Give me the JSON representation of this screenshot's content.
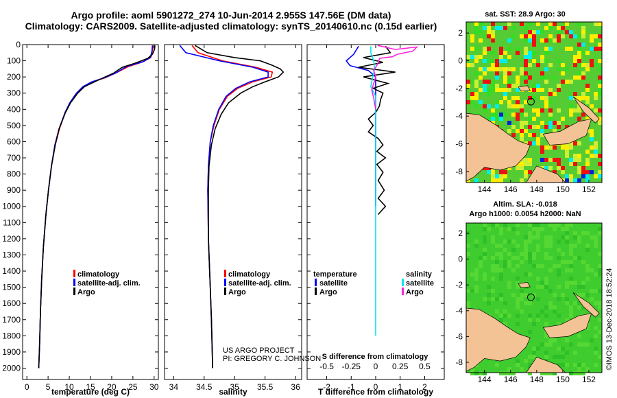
{
  "header": {
    "line1": "Argo profile: aoml 5901272_274 10-Jun-2014 2.955S 147.56E (DM data)",
    "line2": "Climatology: CARS2009. Satellite-adjusted climatology: synTS_20140610.nc (0.15d earlier)"
  },
  "credit": {
    "line1": "US ARGO PROJECT",
    "line2": "PI: GREGORY C. JOHNSON"
  },
  "imos_stamp": "©IMOS 13-Dec-2018 18:52:24",
  "colors": {
    "climatology": "#ff0000",
    "satellite": "#0000ff",
    "argo": "#000000",
    "sat_salinity": "#00e5ee",
    "argo_salinity": "#ff22dd",
    "land": "#f3c295"
  },
  "chart_data": [
    {
      "type": "line",
      "name": "temperature-profile",
      "xlabel": "temperature (deg C)",
      "xlim": [
        -1,
        31
      ],
      "xticks": [
        0,
        5,
        10,
        15,
        20,
        25,
        30
      ],
      "ylim": [
        2070,
        0
      ],
      "yticks": [
        0,
        100,
        200,
        300,
        400,
        500,
        600,
        700,
        800,
        900,
        1000,
        1100,
        1200,
        1300,
        1400,
        1500,
        1600,
        1700,
        1800,
        1900,
        2000
      ],
      "legend": [
        "climatology",
        "satellite-adj. clim.",
        "Argo"
      ],
      "series": [
        {
          "name": "climatology",
          "points": [
            [
              29.8,
              5
            ],
            [
              29.6,
              40
            ],
            [
              29.2,
              80
            ],
            [
              27,
              110
            ],
            [
              24,
              135
            ],
            [
              21,
              175
            ],
            [
              18.5,
              205
            ],
            [
              15.5,
              230
            ],
            [
              13.3,
              260
            ],
            [
              11.8,
              300
            ],
            [
              10.2,
              360
            ],
            [
              9,
              420
            ],
            [
              7.7,
              520
            ],
            [
              6.7,
              620
            ],
            [
              5.8,
              750
            ],
            [
              5.1,
              900
            ],
            [
              4.5,
              1050
            ],
            [
              3.9,
              1250
            ],
            [
              3.5,
              1450
            ],
            [
              3.2,
              1650
            ],
            [
              3,
              1850
            ],
            [
              2.8,
              2000
            ]
          ]
        },
        {
          "name": "satellite-adj. clim.",
          "points": [
            [
              29.6,
              5
            ],
            [
              29.5,
              40
            ],
            [
              29.1,
              80
            ],
            [
              27.5,
              105
            ],
            [
              23.5,
              135
            ],
            [
              21,
              175
            ],
            [
              18.3,
              205
            ],
            [
              15.3,
              230
            ],
            [
              13.2,
              260
            ],
            [
              11.7,
              300
            ],
            [
              10.1,
              360
            ],
            [
              9,
              420
            ],
            [
              7.6,
              520
            ],
            [
              6.6,
              620
            ],
            [
              5.8,
              750
            ],
            [
              5.1,
              900
            ],
            [
              4.5,
              1050
            ],
            [
              3.9,
              1250
            ],
            [
              3.5,
              1450
            ],
            [
              3.2,
              1650
            ],
            [
              3,
              1850
            ],
            [
              2.8,
              2000
            ]
          ]
        },
        {
          "name": "Argo",
          "points": [
            [
              30.2,
              5
            ],
            [
              30.1,
              30
            ],
            [
              29.6,
              60
            ],
            [
              28.5,
              85
            ],
            [
              25.5,
              115
            ],
            [
              22.5,
              140
            ],
            [
              20.5,
              175
            ],
            [
              18,
              205
            ],
            [
              16,
              230
            ],
            [
              13.6,
              260
            ],
            [
              12,
              300
            ],
            [
              10.3,
              360
            ],
            [
              9.1,
              420
            ],
            [
              7.6,
              520
            ],
            [
              6.7,
              620
            ],
            [
              5.8,
              750
            ],
            [
              5.1,
              900
            ],
            [
              4.5,
              1050
            ],
            [
              3.9,
              1250
            ],
            [
              3.5,
              1450
            ],
            [
              3.2,
              1650
            ],
            [
              3,
              1850
            ],
            [
              2.8,
              2000
            ]
          ]
        }
      ]
    },
    {
      "type": "line",
      "name": "salinity-profile",
      "xlabel": "salinity",
      "xlim": [
        33.85,
        36.1
      ],
      "xticks": [
        34,
        34.5,
        35,
        35.5,
        36
      ],
      "ylim": [
        2070,
        0
      ],
      "legend": [
        "climatology",
        "satellite-adj. clim.",
        "Argo"
      ],
      "series": [
        {
          "name": "climatology",
          "points": [
            [
              34.3,
              5
            ],
            [
              34.4,
              50
            ],
            [
              34.8,
              100
            ],
            [
              35.35,
              140
            ],
            [
              35.62,
              170
            ],
            [
              35.6,
              200
            ],
            [
              35.3,
              230
            ],
            [
              35.05,
              270
            ],
            [
              34.88,
              320
            ],
            [
              34.75,
              400
            ],
            [
              34.66,
              500
            ],
            [
              34.6,
              600
            ],
            [
              34.57,
              750
            ],
            [
              34.56,
              900
            ],
            [
              34.57,
              1200
            ],
            [
              34.6,
              1500
            ],
            [
              34.62,
              1700
            ],
            [
              34.64,
              2000
            ]
          ]
        },
        {
          "name": "satellite-adj. clim.",
          "points": [
            [
              34.1,
              5
            ],
            [
              34.2,
              50
            ],
            [
              34.75,
              100
            ],
            [
              35.3,
              140
            ],
            [
              35.55,
              170
            ],
            [
              35.55,
              200
            ],
            [
              35.25,
              230
            ],
            [
              35.02,
              270
            ],
            [
              34.86,
              320
            ],
            [
              34.74,
              400
            ],
            [
              34.65,
              500
            ],
            [
              34.6,
              600
            ],
            [
              34.57,
              750
            ],
            [
              34.56,
              900
            ],
            [
              34.57,
              1200
            ],
            [
              34.6,
              1500
            ],
            [
              34.62,
              1700
            ],
            [
              34.64,
              2000
            ]
          ]
        },
        {
          "name": "Argo",
          "points": [
            [
              34.35,
              5
            ],
            [
              34.55,
              50
            ],
            [
              35.0,
              80
            ],
            [
              35.42,
              100
            ],
            [
              35.6,
              125
            ],
            [
              35.75,
              150
            ],
            [
              35.8,
              170
            ],
            [
              35.72,
              200
            ],
            [
              35.5,
              230
            ],
            [
              35.3,
              260
            ],
            [
              35.1,
              300
            ],
            [
              34.9,
              360
            ],
            [
              34.78,
              430
            ],
            [
              34.68,
              520
            ],
            [
              34.62,
              620
            ],
            [
              34.58,
              750
            ],
            [
              34.57,
              900
            ],
            [
              34.57,
              1200
            ],
            [
              34.6,
              1500
            ],
            [
              34.62,
              1700
            ],
            [
              34.64,
              2000
            ]
          ]
        }
      ]
    },
    {
      "type": "line",
      "name": "difference-profile",
      "xlabel": "T difference from climatology",
      "xlabel_top": "S difference from climatology",
      "xlim": [
        -2.8,
        2.8
      ],
      "xticks": [
        -2,
        -1,
        0,
        1,
        2
      ],
      "top_ticks": [
        -0.5,
        -0.25,
        0,
        0.25,
        0.5
      ],
      "top_tick_labels": [
        "-0.5",
        "-0.25",
        "0",
        "0.25",
        "0.5"
      ],
      "ylim": [
        2070,
        0
      ],
      "legend_temperature": {
        "title": "temperature",
        "items": [
          "satellite",
          "Argo"
        ]
      },
      "legend_salinity": {
        "title": "salinity",
        "items": [
          "satellite",
          "Argo"
        ]
      },
      "series": [
        {
          "name": "T satellite",
          "points": [
            [
              -0.7,
              10
            ],
            [
              -0.9,
              60
            ],
            [
              -1.2,
              100
            ],
            [
              -1.05,
              130
            ],
            [
              -0.3,
              160
            ],
            [
              0,
              200
            ],
            [
              0,
              400
            ],
            [
              0,
              800
            ],
            [
              0,
              1000
            ]
          ]
        },
        {
          "name": "T Argo",
          "points": [
            [
              0.4,
              10
            ],
            [
              0.6,
              50
            ],
            [
              -0.5,
              80
            ],
            [
              0.3,
              110
            ],
            [
              -0.7,
              140
            ],
            [
              0.8,
              170
            ],
            [
              -0.5,
              200
            ],
            [
              0.5,
              240
            ],
            [
              -0.1,
              270
            ],
            [
              0.3,
              300
            ],
            [
              0.2,
              340
            ],
            [
              0.15,
              380
            ],
            [
              0,
              420
            ],
            [
              -0.3,
              460
            ],
            [
              -0.1,
              500
            ],
            [
              -0.3,
              540
            ],
            [
              0.1,
              580
            ],
            [
              0.3,
              620
            ],
            [
              0.05,
              660
            ],
            [
              0.4,
              700
            ],
            [
              0.05,
              740
            ],
            [
              0.3,
              790
            ],
            [
              0.1,
              840
            ],
            [
              0.35,
              900
            ],
            [
              0.1,
              950
            ],
            [
              0.4,
              1000
            ],
            [
              0.1,
              1050
            ]
          ]
        },
        {
          "name": "S satellite",
          "points": [
            [
              -0.05,
              10
            ],
            [
              -0.05,
              50
            ],
            [
              -0.02,
              100
            ],
            [
              -0.01,
              150
            ],
            [
              -0.03,
              200
            ],
            [
              -0.05,
              260
            ],
            [
              0,
              320
            ],
            [
              0,
              400
            ],
            [
              0,
              800
            ],
            [
              0,
              1200
            ],
            [
              0,
              1500
            ],
            [
              0,
              1800
            ]
          ]
        },
        {
          "name": "S Argo",
          "points": [
            [
              0.02,
              5
            ],
            [
              0.2,
              30
            ],
            [
              0.42,
              15
            ],
            [
              0.38,
              40
            ],
            [
              0.22,
              60
            ],
            [
              0.17,
              75
            ],
            [
              0.04,
              85
            ],
            [
              0.02,
              120
            ],
            [
              -0.02,
              160
            ],
            [
              0.0,
              200
            ],
            [
              -0.04,
              280
            ],
            [
              -0.02,
              330
            ],
            [
              0,
              400
            ]
          ]
        }
      ]
    }
  ],
  "maps": {
    "sst": {
      "title": "sat. SST: 28.9  Argo: 30",
      "xticks": [
        144,
        146,
        148,
        150,
        152
      ],
      "yticks": [
        2,
        0,
        -2,
        -4,
        -6,
        -8
      ],
      "lon_range": [
        142.6,
        153.0
      ],
      "lat_range": [
        -8.8,
        2.8
      ],
      "argo_position": [
        147.56,
        -2.955
      ]
    },
    "sla": {
      "title1": "Altim. SLA: -0.018",
      "title2": "Argo h1000: 0.0054 h2000: NaN",
      "xticks": [
        144,
        146,
        148,
        150,
        152
      ],
      "yticks": [
        2,
        0,
        -2,
        -4,
        -6,
        -8
      ],
      "lon_range": [
        142.6,
        153.0
      ],
      "lat_range": [
        -8.8,
        2.8
      ],
      "argo_position": [
        147.56,
        -2.955
      ]
    }
  }
}
